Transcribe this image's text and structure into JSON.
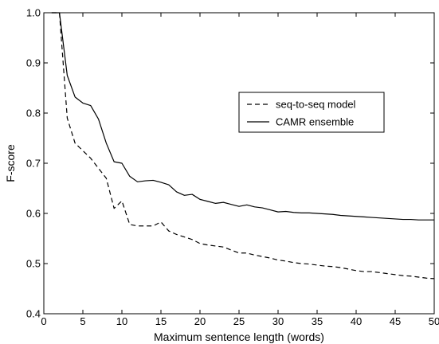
{
  "chart_data": {
    "type": "line",
    "title": "",
    "xlabel": "Maximum sentence length (words)",
    "ylabel": "F-score",
    "xlim": [
      0,
      50
    ],
    "ylim": [
      0.4,
      1.0
    ],
    "xticks": [
      0,
      5,
      10,
      15,
      20,
      25,
      30,
      35,
      40,
      45,
      50
    ],
    "yticks": [
      0.4,
      0.5,
      0.6,
      0.7,
      0.8,
      0.9,
      1.0
    ],
    "xtick_labels": [
      "0",
      "5",
      "10",
      "15",
      "20",
      "25",
      "30",
      "35",
      "40",
      "45",
      "50"
    ],
    "ytick_labels": [
      "0.4",
      "0.5",
      "0.6",
      "0.7",
      "0.8",
      "0.9",
      "1.0"
    ],
    "grid": false,
    "legend": "upper-right, inside plot",
    "series": [
      {
        "name": "seq-to-seq model",
        "style": "dashed",
        "color": "#000000",
        "x": [
          1,
          2,
          3,
          4,
          5,
          6,
          7,
          8,
          9,
          10,
          11,
          12,
          13,
          14,
          15,
          16,
          17,
          18,
          19,
          20,
          21,
          22,
          23,
          24,
          25,
          26,
          27,
          28,
          29,
          30,
          31,
          32,
          33,
          34,
          35,
          36,
          37,
          38,
          39,
          40,
          41,
          42,
          43,
          44,
          45,
          46,
          47,
          48,
          49,
          50
        ],
        "y": [
          1.0,
          1.0,
          0.79,
          0.74,
          0.725,
          0.71,
          0.69,
          0.67,
          0.61,
          0.625,
          0.578,
          0.575,
          0.575,
          0.575,
          0.583,
          0.565,
          0.558,
          0.553,
          0.548,
          0.54,
          0.537,
          0.535,
          0.533,
          0.527,
          0.521,
          0.521,
          0.517,
          0.514,
          0.511,
          0.507,
          0.505,
          0.502,
          0.5,
          0.499,
          0.497,
          0.495,
          0.494,
          0.492,
          0.489,
          0.486,
          0.484,
          0.484,
          0.482,
          0.48,
          0.478,
          0.476,
          0.475,
          0.473,
          0.471,
          0.47
        ]
      },
      {
        "name": "CAMR ensemble",
        "style": "solid",
        "color": "#000000",
        "x": [
          1,
          2,
          3,
          4,
          5,
          6,
          7,
          8,
          9,
          10,
          11,
          12,
          13,
          14,
          15,
          16,
          17,
          18,
          19,
          20,
          21,
          22,
          23,
          24,
          25,
          26,
          27,
          28,
          29,
          30,
          31,
          32,
          33,
          34,
          35,
          36,
          37,
          38,
          39,
          40,
          41,
          42,
          43,
          44,
          45,
          46,
          47,
          48,
          49,
          50
        ],
        "y": [
          1.0,
          1.0,
          0.875,
          0.832,
          0.82,
          0.815,
          0.788,
          0.74,
          0.703,
          0.7,
          0.674,
          0.663,
          0.665,
          0.666,
          0.662,
          0.657,
          0.643,
          0.636,
          0.638,
          0.628,
          0.624,
          0.62,
          0.622,
          0.618,
          0.614,
          0.617,
          0.613,
          0.611,
          0.607,
          0.603,
          0.604,
          0.602,
          0.601,
          0.601,
          0.6,
          0.599,
          0.598,
          0.596,
          0.595,
          0.594,
          0.593,
          0.592,
          0.591,
          0.59,
          0.589,
          0.588,
          0.588,
          0.587,
          0.587,
          0.587
        ]
      }
    ]
  }
}
